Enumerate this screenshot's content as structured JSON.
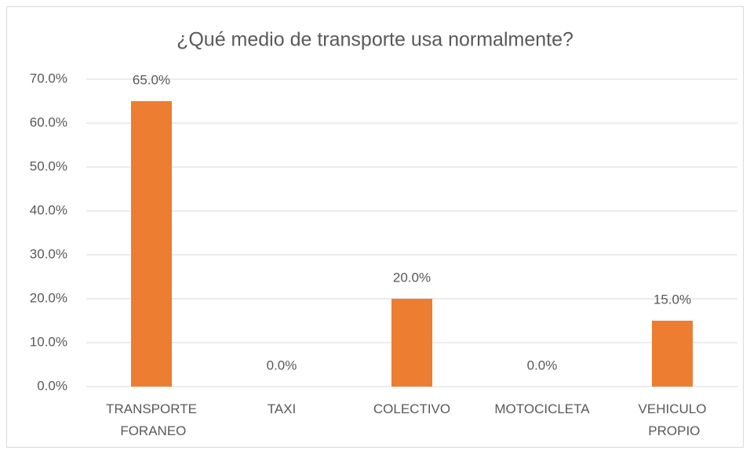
{
  "chart_data": {
    "type": "bar",
    "title": "¿Qué medio de transporte usa normalmente?",
    "categories": [
      "TRANSPORTE FORANEO",
      "TAXI",
      "COLECTIVO",
      "MOTOCICLETA",
      "VEHICULO PROPIO"
    ],
    "values": [
      65,
      0,
      20,
      0,
      15
    ],
    "value_labels": [
      "65.0%",
      "0.0%",
      "20.0%",
      "0.0%",
      "15.0%"
    ],
    "color": "#ed7d31",
    "ylim": [
      0,
      70
    ],
    "yticks": [
      {
        "value": 0,
        "label": "0.0%"
      },
      {
        "value": 10,
        "label": "10.0%"
      },
      {
        "value": 20,
        "label": "20.0%"
      },
      {
        "value": 30,
        "label": "30.0%"
      },
      {
        "value": 40,
        "label": "40.0%"
      },
      {
        "value": 50,
        "label": "50.0%"
      },
      {
        "value": 60,
        "label": "60.0%"
      },
      {
        "value": 70,
        "label": "70.0%"
      }
    ],
    "grid": true
  }
}
